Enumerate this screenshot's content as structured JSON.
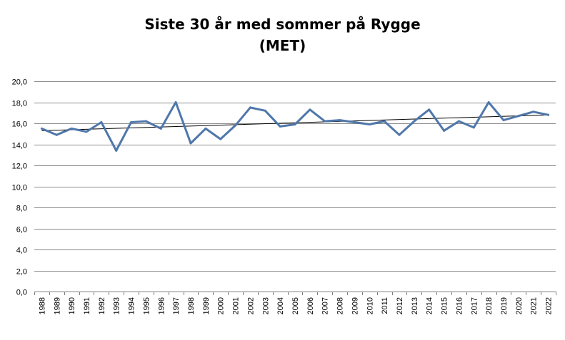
{
  "chart_data": {
    "type": "line",
    "title": "Siste 30 år med sommer på Rygge",
    "subtitle": "(MET)",
    "xlabel": "",
    "ylabel": "",
    "ylim": [
      0,
      20
    ],
    "y_ticks": [
      "0,0",
      "2,0",
      "4,0",
      "6,0",
      "8,0",
      "10,0",
      "12,0",
      "14,0",
      "16,0",
      "18,0",
      "20,0"
    ],
    "categories": [
      "1988",
      "1989",
      "1990",
      "1991",
      "1992",
      "1993",
      "1994",
      "1995",
      "1996",
      "1997",
      "1998",
      "1999",
      "2000",
      "2001",
      "2002",
      "2003",
      "2004",
      "2005",
      "2006",
      "2007",
      "2008",
      "2009",
      "2010",
      "2011",
      "2012",
      "2013",
      "2014",
      "2015",
      "2016",
      "2017",
      "2018",
      "2019",
      "2020",
      "2021",
      "2022"
    ],
    "series": [
      {
        "values": [
          15.5,
          14.9,
          15.5,
          15.2,
          16.1,
          13.4,
          16.1,
          16.2,
          15.5,
          18.0,
          14.1,
          15.5,
          14.5,
          15.8,
          17.5,
          17.2,
          15.7,
          15.9,
          17.3,
          16.2,
          16.3,
          16.1,
          15.9,
          16.2,
          14.9,
          16.2,
          17.3,
          15.3,
          16.2,
          15.6,
          18.0,
          16.3,
          16.7,
          17.1,
          16.8
        ],
        "color": "#4f77aa"
      }
    ],
    "trendline": {
      "start": 15.3,
      "end": 16.8,
      "color": "#000000"
    },
    "grid": true,
    "gridline_color": "#8c8c8c",
    "legend": "none"
  }
}
